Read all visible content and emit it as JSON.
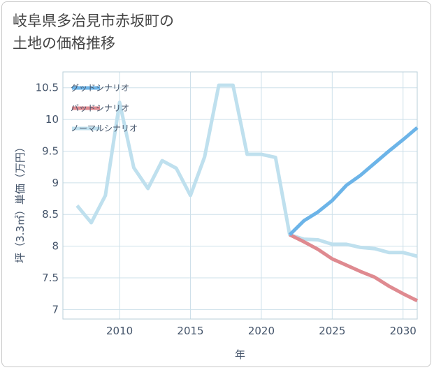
{
  "title_lines": [
    "岐阜県多治見市赤坂町の",
    "土地の価格推移"
  ],
  "colors": {
    "good": "#6cb4e8",
    "bad": "#df8a90",
    "normal": "#bfe0ee",
    "grid": "#cde0ea",
    "axis_text": "#44546a"
  },
  "chart_data": {
    "type": "line",
    "title": "岐阜県多治見市赤坂町の土地の価格推移",
    "xlabel": "年",
    "ylabel": "坪（3.3㎡）単価（万円）",
    "xlim": [
      2006,
      2031
    ],
    "ylim": [
      6.85,
      10.75
    ],
    "xticks": [
      2010,
      2015,
      2020,
      2025,
      2030
    ],
    "yticks": [
      7,
      7.5,
      8,
      8.5,
      9,
      9.5,
      10,
      10.5
    ],
    "ytick_labels": [
      "7",
      "7.5",
      "8",
      "8.5",
      "9",
      "9.5",
      "10",
      "10.5"
    ],
    "grid": true,
    "legend_position": "top-left",
    "series": [
      {
        "name": "グッドシナリオ",
        "color_key": "good",
        "x": [
          2022,
          2023,
          2024,
          2025,
          2026,
          2027,
          2028,
          2029,
          2030,
          2031
        ],
        "y": [
          8.18,
          8.4,
          8.54,
          8.72,
          8.96,
          9.12,
          9.31,
          9.5,
          9.68,
          9.87
        ]
      },
      {
        "name": "バッドシナリオ",
        "color_key": "bad",
        "x": [
          2022,
          2023,
          2024,
          2025,
          2026,
          2027,
          2028,
          2029,
          2030,
          2031
        ],
        "y": [
          8.18,
          8.07,
          7.95,
          7.8,
          7.7,
          7.6,
          7.51,
          7.37,
          7.25,
          7.14
        ]
      },
      {
        "name": "ノーマルシナリオ",
        "color_key": "normal",
        "x": [
          2007,
          2008,
          2009,
          2010,
          2011,
          2012,
          2013,
          2014,
          2015,
          2016,
          2017,
          2018,
          2019,
          2020,
          2021,
          2022,
          2023,
          2024,
          2025,
          2026,
          2027,
          2028,
          2029,
          2030,
          2031
        ],
        "y": [
          8.64,
          8.37,
          8.8,
          10.27,
          9.24,
          8.91,
          9.35,
          9.23,
          8.8,
          9.41,
          10.54,
          10.54,
          9.45,
          9.45,
          9.4,
          8.18,
          8.11,
          8.1,
          8.03,
          8.03,
          7.98,
          7.96,
          7.9,
          7.9,
          7.84
        ]
      }
    ]
  }
}
